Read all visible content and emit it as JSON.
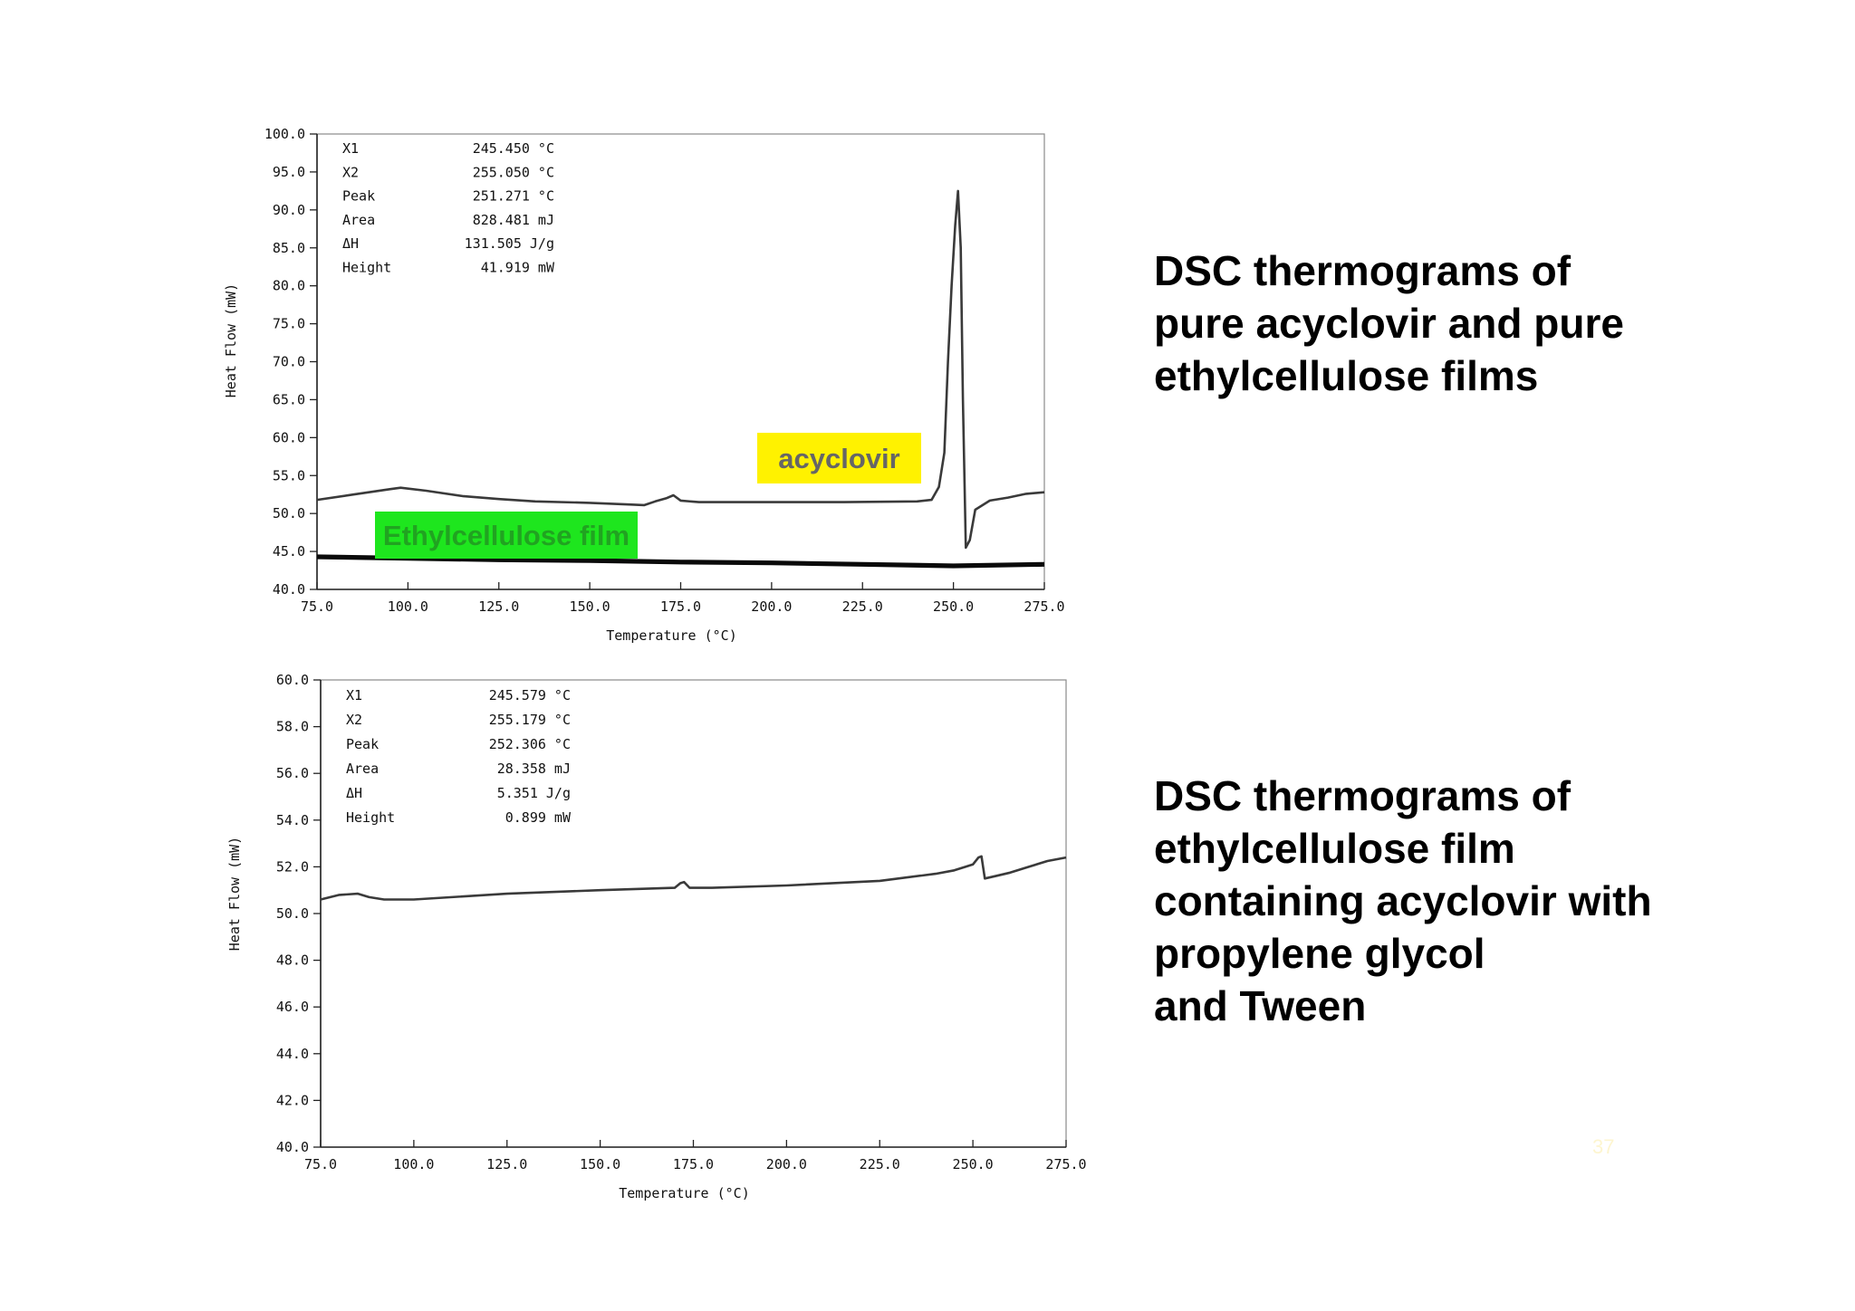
{
  "captions": {
    "top": [
      "DSC thermograms of",
      "pure acyclovir and pure",
      "ethylcellulose films"
    ],
    "bottom": [
      "DSC thermograms of",
      "ethylcellulose film",
      "containing acyclovir with",
      "propylene glycol",
      "and Tween"
    ]
  },
  "page_number": "37",
  "chart_data": [
    {
      "type": "line",
      "xlabel": "Temperature (°C)",
      "ylabel": "Heat Flow (mW)",
      "xlim": [
        75.0,
        275.0
      ],
      "ylim": [
        40.0,
        100.0
      ],
      "x_ticks": [
        "75.0",
        "100.0",
        "125.0",
        "150.0",
        "175.0",
        "200.0",
        "225.0",
        "250.0",
        "275.0"
      ],
      "y_ticks": [
        "100.0",
        "95.0",
        "90.0",
        "85.0",
        "80.0",
        "75.0",
        "70.0",
        "65.0",
        "60.0",
        "55.0",
        "50.0",
        "45.0",
        "40.0"
      ],
      "info": [
        {
          "label": "X1",
          "value": "245.450 °C"
        },
        {
          "label": "X2",
          "value": "255.050 °C"
        },
        {
          "label": "Peak",
          "value": "251.271 °C"
        },
        {
          "label": "Area",
          "value": "828.481 mJ"
        },
        {
          "label": "ΔH",
          "value": "131.505 J/g"
        },
        {
          "label": "Height",
          "value": "41.919 mW"
        }
      ],
      "series": [
        {
          "name": "acyclovir",
          "tag_color": "#fff200",
          "x": [
            75,
            85,
            95,
            98,
            105,
            115,
            125,
            135,
            150,
            160,
            165,
            168,
            171,
            173,
            175,
            180,
            200,
            220,
            240,
            244,
            246,
            247.5,
            248.5,
            249.5,
            250.5,
            251.27,
            252,
            252.6,
            253.4,
            254.5,
            256,
            260,
            265,
            270,
            275
          ],
          "y": [
            51.8,
            52.5,
            53.2,
            53.4,
            53.0,
            52.3,
            51.9,
            51.6,
            51.4,
            51.2,
            51.1,
            51.6,
            52.0,
            52.4,
            51.7,
            51.5,
            51.5,
            51.5,
            51.6,
            51.8,
            53.5,
            58,
            70,
            80,
            88,
            92.5,
            85,
            65,
            45.5,
            46.5,
            50.5,
            51.7,
            52.1,
            52.6,
            52.8
          ]
        },
        {
          "name": "Ethylcellulose film",
          "tag_color": "#1ee61e",
          "x": [
            75,
            100,
            125,
            150,
            175,
            200,
            225,
            250,
            275
          ],
          "y": [
            44.3,
            44.1,
            43.9,
            43.8,
            43.6,
            43.5,
            43.3,
            43.1,
            43.3
          ]
        }
      ]
    },
    {
      "type": "line",
      "xlabel": "Temperature (°C)",
      "ylabel": "Heat Flow (mW)",
      "xlim": [
        75.0,
        275.0
      ],
      "ylim": [
        40.0,
        60.0
      ],
      "x_ticks": [
        "75.0",
        "100.0",
        "125.0",
        "150.0",
        "175.0",
        "200.0",
        "225.0",
        "250.0",
        "275.0"
      ],
      "y_ticks": [
        "60.0",
        "58.0",
        "56.0",
        "54.0",
        "52.0",
        "50.0",
        "48.0",
        "46.0",
        "44.0",
        "42.0",
        "40.0"
      ],
      "info": [
        {
          "label": "X1",
          "value": "245.579 °C"
        },
        {
          "label": "X2",
          "value": "255.179 °C"
        },
        {
          "label": "Peak",
          "value": "252.306 °C"
        },
        {
          "label": "Area",
          "value": "28.358 mJ"
        },
        {
          "label": "ΔH",
          "value": "5.351 J/g"
        },
        {
          "label": "Height",
          "value": "0.899 mW"
        }
      ],
      "series": [
        {
          "name": "",
          "x": [
            75,
            80,
            85,
            88,
            92,
            100,
            125,
            150,
            170,
            171.5,
            172.5,
            174,
            180,
            200,
            225,
            240,
            245,
            248,
            250,
            251.5,
            252.3,
            253.2,
            256,
            260,
            265,
            270,
            275
          ],
          "y": [
            50.6,
            50.8,
            50.85,
            50.7,
            50.6,
            50.6,
            50.85,
            51.0,
            51.1,
            51.3,
            51.35,
            51.1,
            51.1,
            51.2,
            51.4,
            51.7,
            51.85,
            52.0,
            52.1,
            52.4,
            52.45,
            51.5,
            51.6,
            51.75,
            52.0,
            52.25,
            52.4
          ]
        }
      ]
    }
  ]
}
